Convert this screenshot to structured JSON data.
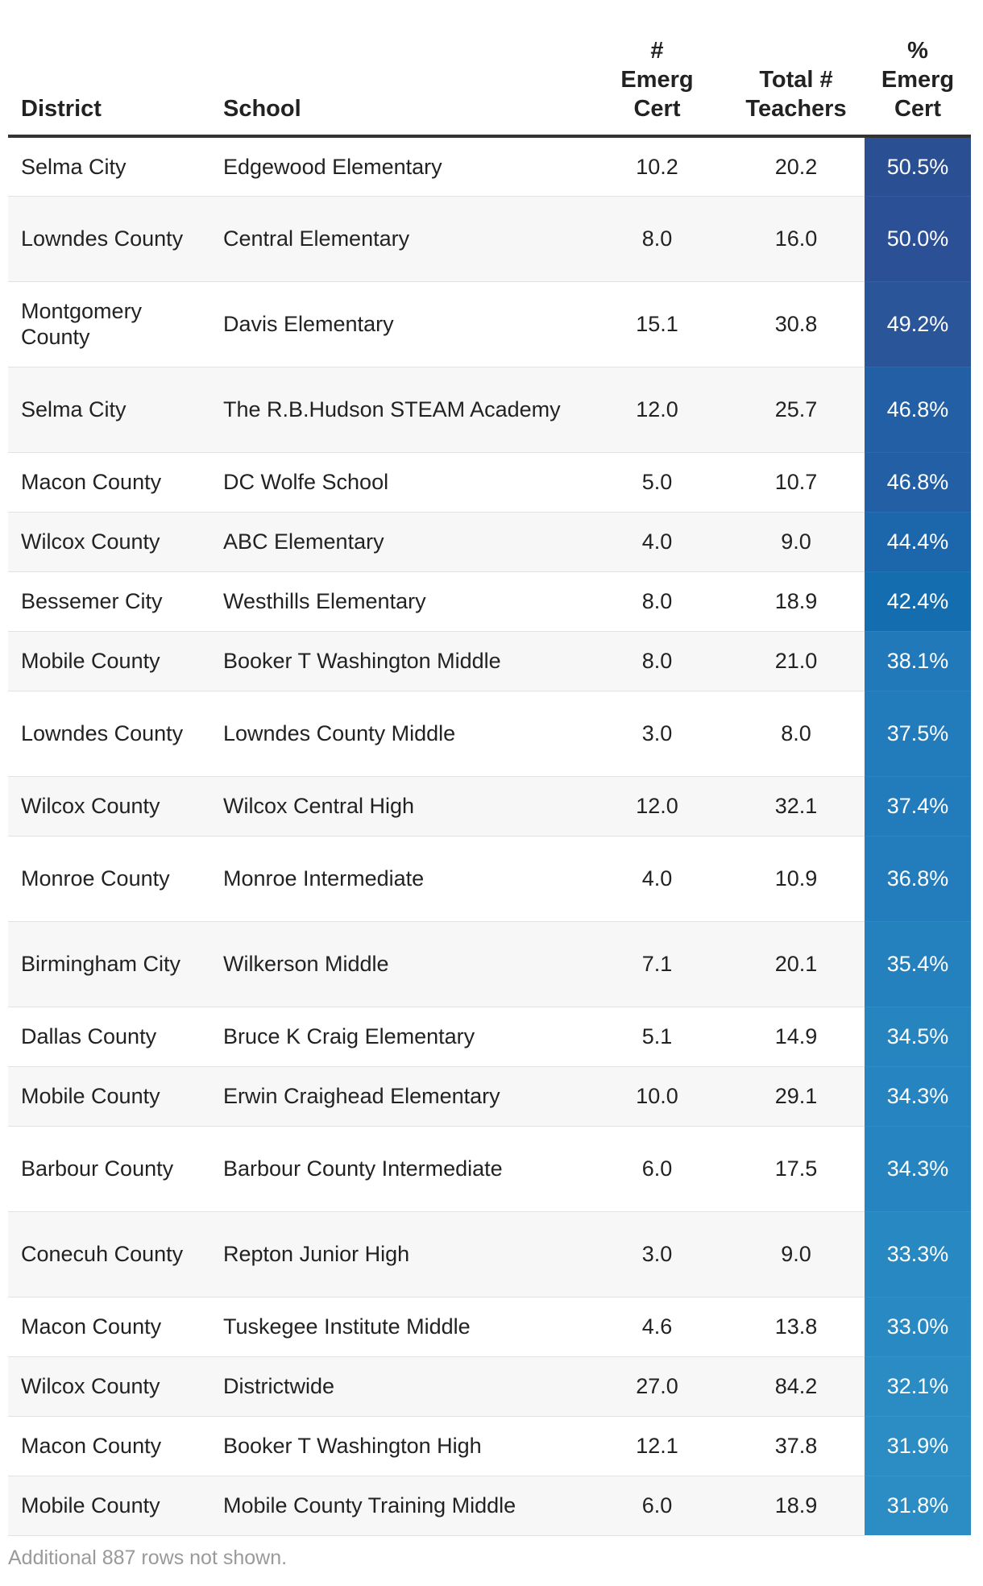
{
  "chart_data": {
    "type": "table",
    "columns": [
      "District",
      "School",
      "#\nEmerg\nCert",
      "Total #\nTeachers",
      "%\nEmerg\nCert"
    ],
    "rows": [
      {
        "district": "Selma City",
        "school": "Edgewood Elementary",
        "emerg": "10.2",
        "total": "20.2",
        "pct": "50.5%",
        "color": "#2b4f93"
      },
      {
        "district": "Lowndes County",
        "school": "Central Elementary",
        "emerg": "8.0",
        "total": "16.0",
        "pct": "50.0%",
        "color": "#2b5095"
      },
      {
        "district": "Montgomery County",
        "school": "Davis Elementary",
        "emerg": "15.1",
        "total": "30.8",
        "pct": "49.2%",
        "color": "#2a5599"
      },
      {
        "district": "Selma City",
        "school": "The R.B.Hudson STEAM Academy",
        "emerg": "12.0",
        "total": "25.7",
        "pct": "46.8%",
        "color": "#225fa5"
      },
      {
        "district": "Macon County",
        "school": "DC Wolfe School",
        "emerg": "5.0",
        "total": "10.7",
        "pct": "46.8%",
        "color": "#225fa5"
      },
      {
        "district": "Wilcox County",
        "school": "ABC Elementary",
        "emerg": "4.0",
        "total": "9.0",
        "pct": "44.4%",
        "color": "#1c66ab"
      },
      {
        "district": "Bessemer City",
        "school": "Westhills Elementary",
        "emerg": "8.0",
        "total": "18.9",
        "pct": "42.4%",
        "color": "#146daf"
      },
      {
        "district": "Mobile County",
        "school": "Booker T Washington Middle",
        "emerg": "8.0",
        "total": "21.0",
        "pct": "38.1%",
        "color": "#2179ba"
      },
      {
        "district": "Lowndes County",
        "school": "Lowndes County Middle",
        "emerg": "3.0",
        "total": "8.0",
        "pct": "37.5%",
        "color": "#227bbb"
      },
      {
        "district": "Wilcox County",
        "school": "Wilcox Central High",
        "emerg": "12.0",
        "total": "32.1",
        "pct": "37.4%",
        "color": "#227bbb"
      },
      {
        "district": "Monroe County",
        "school": "Monroe Intermediate",
        "emerg": "4.0",
        "total": "10.9",
        "pct": "36.8%",
        "color": "#237dbc"
      },
      {
        "district": "Birmingham City",
        "school": "Wilkerson Middle",
        "emerg": "7.1",
        "total": "20.1",
        "pct": "35.4%",
        "color": "#2581be"
      },
      {
        "district": "Dallas County",
        "school": "Bruce K Craig Elementary",
        "emerg": "5.1",
        "total": "14.9",
        "pct": "34.5%",
        "color": "#2684bf"
      },
      {
        "district": "Mobile County",
        "school": "Erwin Craighead Elementary",
        "emerg": "10.0",
        "total": "29.1",
        "pct": "34.3%",
        "color": "#2685c0"
      },
      {
        "district": "Barbour County",
        "school": "Barbour County Intermediate",
        "emerg": "6.0",
        "total": "17.5",
        "pct": "34.3%",
        "color": "#2685c0"
      },
      {
        "district": "Conecuh County",
        "school": "Repton Junior High",
        "emerg": "3.0",
        "total": "9.0",
        "pct": "33.3%",
        "color": "#2888c1"
      },
      {
        "district": "Macon County",
        "school": "Tuskegee Institute Middle",
        "emerg": "4.6",
        "total": "13.8",
        "pct": "33.0%",
        "color": "#2989c2"
      },
      {
        "district": "Wilcox County",
        "school": "Districtwide",
        "emerg": "27.0",
        "total": "84.2",
        "pct": "32.1%",
        "color": "#2b8cc3"
      },
      {
        "district": "Macon County",
        "school": "Booker T Washington High",
        "emerg": "12.1",
        "total": "37.8",
        "pct": "31.9%",
        "color": "#2c8dc4"
      },
      {
        "district": "Mobile County",
        "school": "Mobile County Training Middle",
        "emerg": "6.0",
        "total": "18.9",
        "pct": "31.8%",
        "color": "#2c8dc4"
      }
    ],
    "footnote": "Additional 887 rows not shown."
  }
}
